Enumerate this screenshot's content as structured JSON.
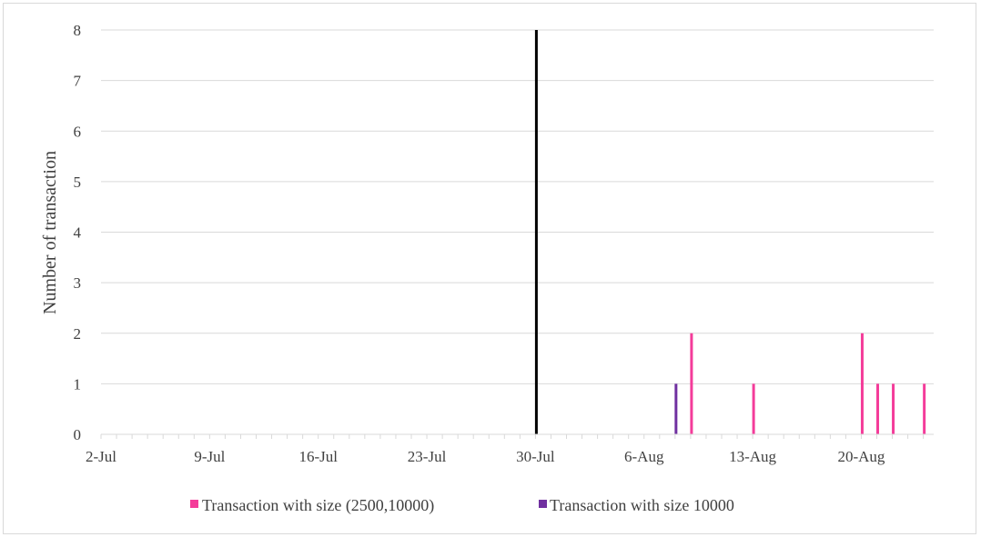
{
  "chart_data": {
    "type": "bar",
    "title": "",
    "xlabel": "",
    "ylabel": "Number of transaction",
    "x_axis": {
      "type": "date",
      "year_unknown": true,
      "start": "2-Jul",
      "end": "24-Aug",
      "tick_labels": [
        "2-Jul",
        "9-Jul",
        "16-Jul",
        "23-Jul",
        "30-Jul",
        "6-Aug",
        "13-Aug",
        "20-Aug"
      ]
    },
    "y_axis": {
      "ylim": [
        0,
        8
      ],
      "tick_labels": [
        "0",
        "1",
        "2",
        "3",
        "4",
        "5",
        "6",
        "7",
        "8"
      ]
    },
    "grid": {
      "horizontal": true,
      "vertical": false
    },
    "legend": {
      "placement": "bottom",
      "entries": [
        "Transaction with size (2500,10000)",
        "Transaction with size 10000"
      ]
    },
    "series": [
      {
        "name": "Transaction with size (2500,10000)",
        "color": "#f43c9a",
        "points": [
          {
            "x": "9-Aug",
            "y": 2
          },
          {
            "x": "13-Aug",
            "y": 1
          },
          {
            "x": "20-Aug",
            "y": 2
          },
          {
            "x": "21-Aug",
            "y": 1
          },
          {
            "x": "22-Aug",
            "y": 1
          },
          {
            "x": "24-Aug",
            "y": 1
          }
        ]
      },
      {
        "name": "Transaction with size 10000",
        "color": "#7030a0",
        "points": [
          {
            "x": "8-Aug",
            "y": 1
          }
        ]
      },
      {
        "name": "",
        "color": "#000000",
        "points": [
          {
            "x": "30-Jul",
            "y": 8
          }
        ]
      }
    ]
  }
}
